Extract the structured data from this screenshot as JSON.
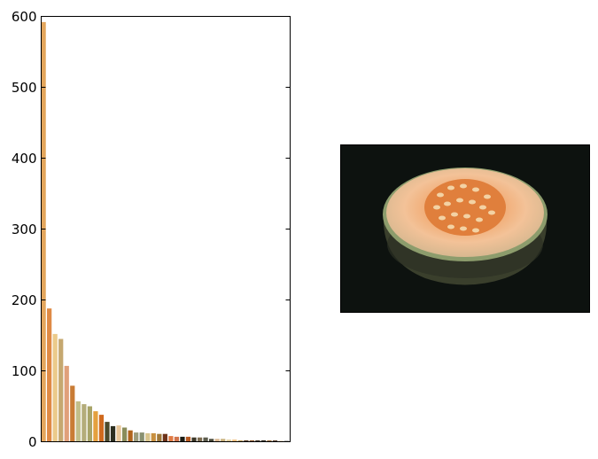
{
  "chart_data": {
    "type": "bar",
    "title": "",
    "xlabel": "",
    "ylabel": "",
    "ylim": [
      0,
      600
    ],
    "yticks": [
      0,
      100,
      200,
      300,
      400,
      500,
      600
    ],
    "ytick_labels": [
      "0",
      "100",
      "200",
      "300",
      "400",
      "500",
      "600"
    ],
    "grid": false,
    "legend": "none",
    "values": [
      592,
      188,
      152,
      145,
      107,
      79,
      57,
      53,
      50,
      43,
      38,
      28,
      22,
      23,
      20,
      16,
      13,
      13,
      12,
      12,
      11,
      11,
      8,
      7,
      7,
      7,
      6,
      6,
      6,
      4,
      4,
      4,
      3,
      3,
      2,
      2,
      2,
      2,
      2,
      2,
      2,
      1,
      1
    ],
    "colors": [
      "#e3a65d",
      "#df8a45",
      "#ebca8a",
      "#c5a870",
      "#e0a07a",
      "#c97c35",
      "#c2be8a",
      "#b4ac7a",
      "#a8a468",
      "#e4a03e",
      "#d06a1e",
      "#4c4a2c",
      "#2c2e20",
      "#e8c79a",
      "#8a8c5a",
      "#b0641c",
      "#9c9c7c",
      "#889070",
      "#d8c48c",
      "#c89040",
      "#a07838",
      "#6c3218",
      "#e07a44",
      "#d0744c",
      "#1c1c14",
      "#b85a22",
      "#3c3828",
      "#7c6c50",
      "#5c5c4c",
      "#484838",
      "#dcb890",
      "#c8b07c",
      "#e4d09c",
      "#f0c080",
      "#c0a060",
      "#5a3c20",
      "#8c5a2c",
      "#403020",
      "#2a2418",
      "#9c7040",
      "#604830",
      "#d89a60",
      "#1a1814"
    ]
  },
  "image_panel": {
    "subject": "halved cantaloupe melon on black background",
    "background_color": "#0d120f",
    "flesh_color": "#f0b888",
    "center_color": "#e88a48",
    "rind_color": "#4c5238"
  }
}
